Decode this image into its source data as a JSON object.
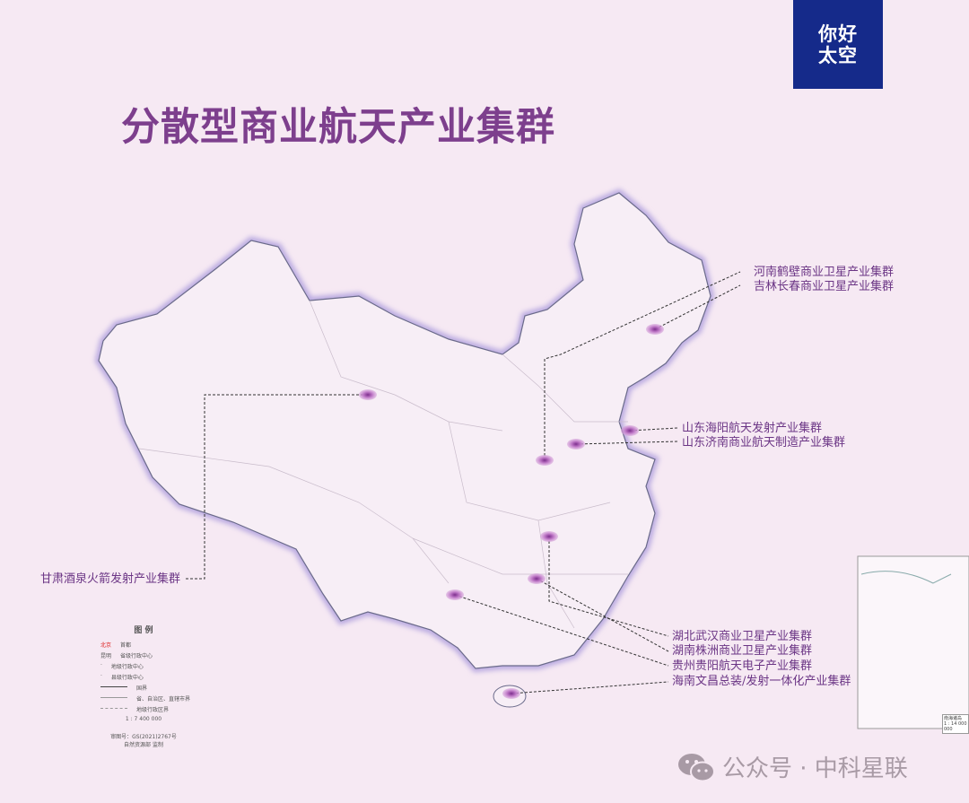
{
  "logo": {
    "line1": "你好",
    "line2": "太空"
  },
  "title": "分散型商业航天产业集群",
  "colors": {
    "title": "#7d3f8d",
    "logo_bg": "#152a8a",
    "marker": "#b05ab8",
    "background": "#f6e9f3"
  },
  "clusters": [
    {
      "label": "河南鹤壁商业卫星产业集群"
    },
    {
      "label": "吉林长春商业卫星产业集群"
    },
    {
      "label": "山东海阳航天发射产业集群"
    },
    {
      "label": "山东济南商业航天制造产业集群"
    },
    {
      "label": "甘肃酒泉火箭发射产业集群"
    },
    {
      "label": "湖北武汉商业卫星产业集群"
    },
    {
      "label": "湖南株洲商业卫星产业集群"
    },
    {
      "label": "贵州贵阳航天电子产业集群"
    },
    {
      "label": "海南文昌总装/发射一体化产业集群"
    }
  ],
  "legend": {
    "title": "图 例",
    "rows": [
      [
        "北京",
        "首都"
      ],
      [
        "昆明",
        "省级行政中心"
      ],
      [
        "",
        "地级行政中心"
      ],
      [
        "",
        "县级行政中心"
      ],
      [
        "",
        "国界"
      ],
      [
        "",
        "省、自治区、直辖市界"
      ],
      [
        "",
        "地级行政区界"
      ]
    ],
    "scale": "1 : 7 400 000",
    "approval": "审图号：GS(2021)2767号",
    "supervisor": "自然资源部 监制"
  },
  "inset": {
    "label": "南海诸岛",
    "scale": "1 : 14 000 000"
  },
  "watermark": {
    "text": "公众号 · 中科星联",
    "icon": "wechat-icon"
  }
}
